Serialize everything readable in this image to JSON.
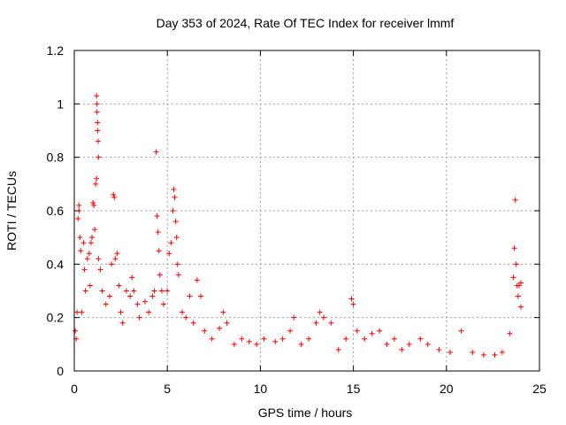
{
  "chart_data": {
    "type": "scatter",
    "title": "Day 353 of 2024, Rate Of TEC Index for receiver lmmf",
    "xlabel": "GPS time / hours",
    "ylabel": "ROTI / TECUs",
    "xlim": [
      0,
      25
    ],
    "ylim": [
      0,
      1.2
    ],
    "xticks": [
      0,
      5,
      10,
      15,
      20,
      25
    ],
    "xtick_labels": [
      "0",
      "5",
      "10",
      "15",
      "20",
      "25"
    ],
    "yticks": [
      0,
      0.2,
      0.4,
      0.6,
      0.8,
      1.0,
      1.2
    ],
    "ytick_labels": [
      "0",
      "0.2",
      "0.4",
      "0.6",
      "0.8",
      "1",
      "1.2"
    ],
    "grid": true,
    "marker": "+",
    "series": [
      {
        "name": "ROTI",
        "color": "#ff0000",
        "points": [
          [
            0.05,
            0.15
          ],
          [
            0.1,
            0.12
          ],
          [
            0.15,
            0.22
          ],
          [
            0.2,
            0.57
          ],
          [
            0.25,
            0.6
          ],
          [
            0.25,
            0.62
          ],
          [
            0.3,
            0.5
          ],
          [
            0.35,
            0.45
          ],
          [
            0.4,
            0.22
          ],
          [
            0.5,
            0.48
          ],
          [
            0.55,
            0.38
          ],
          [
            0.6,
            0.3
          ],
          [
            0.7,
            0.42
          ],
          [
            0.8,
            0.44
          ],
          [
            0.85,
            0.32
          ],
          [
            0.9,
            0.48
          ],
          [
            0.95,
            0.5
          ],
          [
            1.0,
            0.63
          ],
          [
            1.05,
            0.62
          ],
          [
            1.1,
            0.53
          ],
          [
            1.15,
            0.7
          ],
          [
            1.2,
            0.72
          ],
          [
            1.2,
            1.03
          ],
          [
            1.22,
            1.0
          ],
          [
            1.22,
            0.97
          ],
          [
            1.25,
            0.93
          ],
          [
            1.25,
            0.9
          ],
          [
            1.28,
            0.86
          ],
          [
            1.3,
            0.8
          ],
          [
            1.3,
            0.42
          ],
          [
            1.4,
            0.38
          ],
          [
            1.5,
            0.3
          ],
          [
            1.7,
            0.25
          ],
          [
            1.9,
            0.28
          ],
          [
            2.0,
            0.4
          ],
          [
            2.1,
            0.66
          ],
          [
            2.15,
            0.65
          ],
          [
            2.2,
            0.42
          ],
          [
            2.3,
            0.44
          ],
          [
            2.4,
            0.32
          ],
          [
            2.5,
            0.22
          ],
          [
            2.6,
            0.18
          ],
          [
            2.8,
            0.3
          ],
          [
            3.0,
            0.28
          ],
          [
            3.1,
            0.35
          ],
          [
            3.2,
            0.3
          ],
          [
            3.4,
            0.25
          ],
          [
            3.5,
            0.2
          ],
          [
            3.8,
            0.26
          ],
          [
            4.0,
            0.22
          ],
          [
            4.2,
            0.28
          ],
          [
            4.3,
            0.3
          ],
          [
            4.4,
            0.82
          ],
          [
            4.45,
            0.58
          ],
          [
            4.5,
            0.52
          ],
          [
            4.55,
            0.45
          ],
          [
            4.6,
            0.36
          ],
          [
            4.7,
            0.3
          ],
          [
            4.8,
            0.25
          ],
          [
            5.0,
            0.3
          ],
          [
            5.1,
            0.44
          ],
          [
            5.2,
            0.48
          ],
          [
            5.3,
            0.6
          ],
          [
            5.35,
            0.68
          ],
          [
            5.4,
            0.65
          ],
          [
            5.45,
            0.56
          ],
          [
            5.5,
            0.5
          ],
          [
            5.55,
            0.4
          ],
          [
            5.6,
            0.36
          ],
          [
            5.8,
            0.22
          ],
          [
            6.0,
            0.2
          ],
          [
            6.2,
            0.28
          ],
          [
            6.4,
            0.18
          ],
          [
            6.6,
            0.34
          ],
          [
            6.8,
            0.28
          ],
          [
            7.0,
            0.15
          ],
          [
            7.4,
            0.12
          ],
          [
            7.8,
            0.16
          ],
          [
            8.0,
            0.22
          ],
          [
            8.2,
            0.18
          ],
          [
            8.6,
            0.1
          ],
          [
            9.0,
            0.12
          ],
          [
            9.4,
            0.11
          ],
          [
            9.8,
            0.1
          ],
          [
            10.2,
            0.12
          ],
          [
            10.8,
            0.11
          ],
          [
            11.2,
            0.12
          ],
          [
            11.6,
            0.15
          ],
          [
            11.8,
            0.2
          ],
          [
            12.2,
            0.1
          ],
          [
            12.6,
            0.12
          ],
          [
            13.0,
            0.18
          ],
          [
            13.2,
            0.22
          ],
          [
            13.4,
            0.2
          ],
          [
            13.8,
            0.18
          ],
          [
            14.2,
            0.08
          ],
          [
            14.6,
            0.12
          ],
          [
            14.9,
            0.27
          ],
          [
            15.0,
            0.25
          ],
          [
            15.2,
            0.15
          ],
          [
            15.6,
            0.12
          ],
          [
            16.0,
            0.14
          ],
          [
            16.4,
            0.15
          ],
          [
            16.8,
            0.1
          ],
          [
            17.2,
            0.12
          ],
          [
            17.6,
            0.08
          ],
          [
            18.0,
            0.1
          ],
          [
            18.6,
            0.12
          ],
          [
            19.0,
            0.1
          ],
          [
            19.6,
            0.08
          ],
          [
            20.2,
            0.07
          ],
          [
            20.8,
            0.15
          ],
          [
            21.4,
            0.07
          ],
          [
            22.0,
            0.06
          ],
          [
            22.6,
            0.06
          ],
          [
            23.0,
            0.07
          ],
          [
            23.4,
            0.14
          ],
          [
            23.6,
            0.35
          ],
          [
            23.65,
            0.46
          ],
          [
            23.7,
            0.64
          ],
          [
            23.75,
            0.4
          ],
          [
            23.8,
            0.32
          ],
          [
            23.85,
            0.28
          ],
          [
            23.9,
            0.32
          ],
          [
            24.0,
            0.33
          ],
          [
            24.0,
            0.24
          ]
        ]
      }
    ]
  }
}
